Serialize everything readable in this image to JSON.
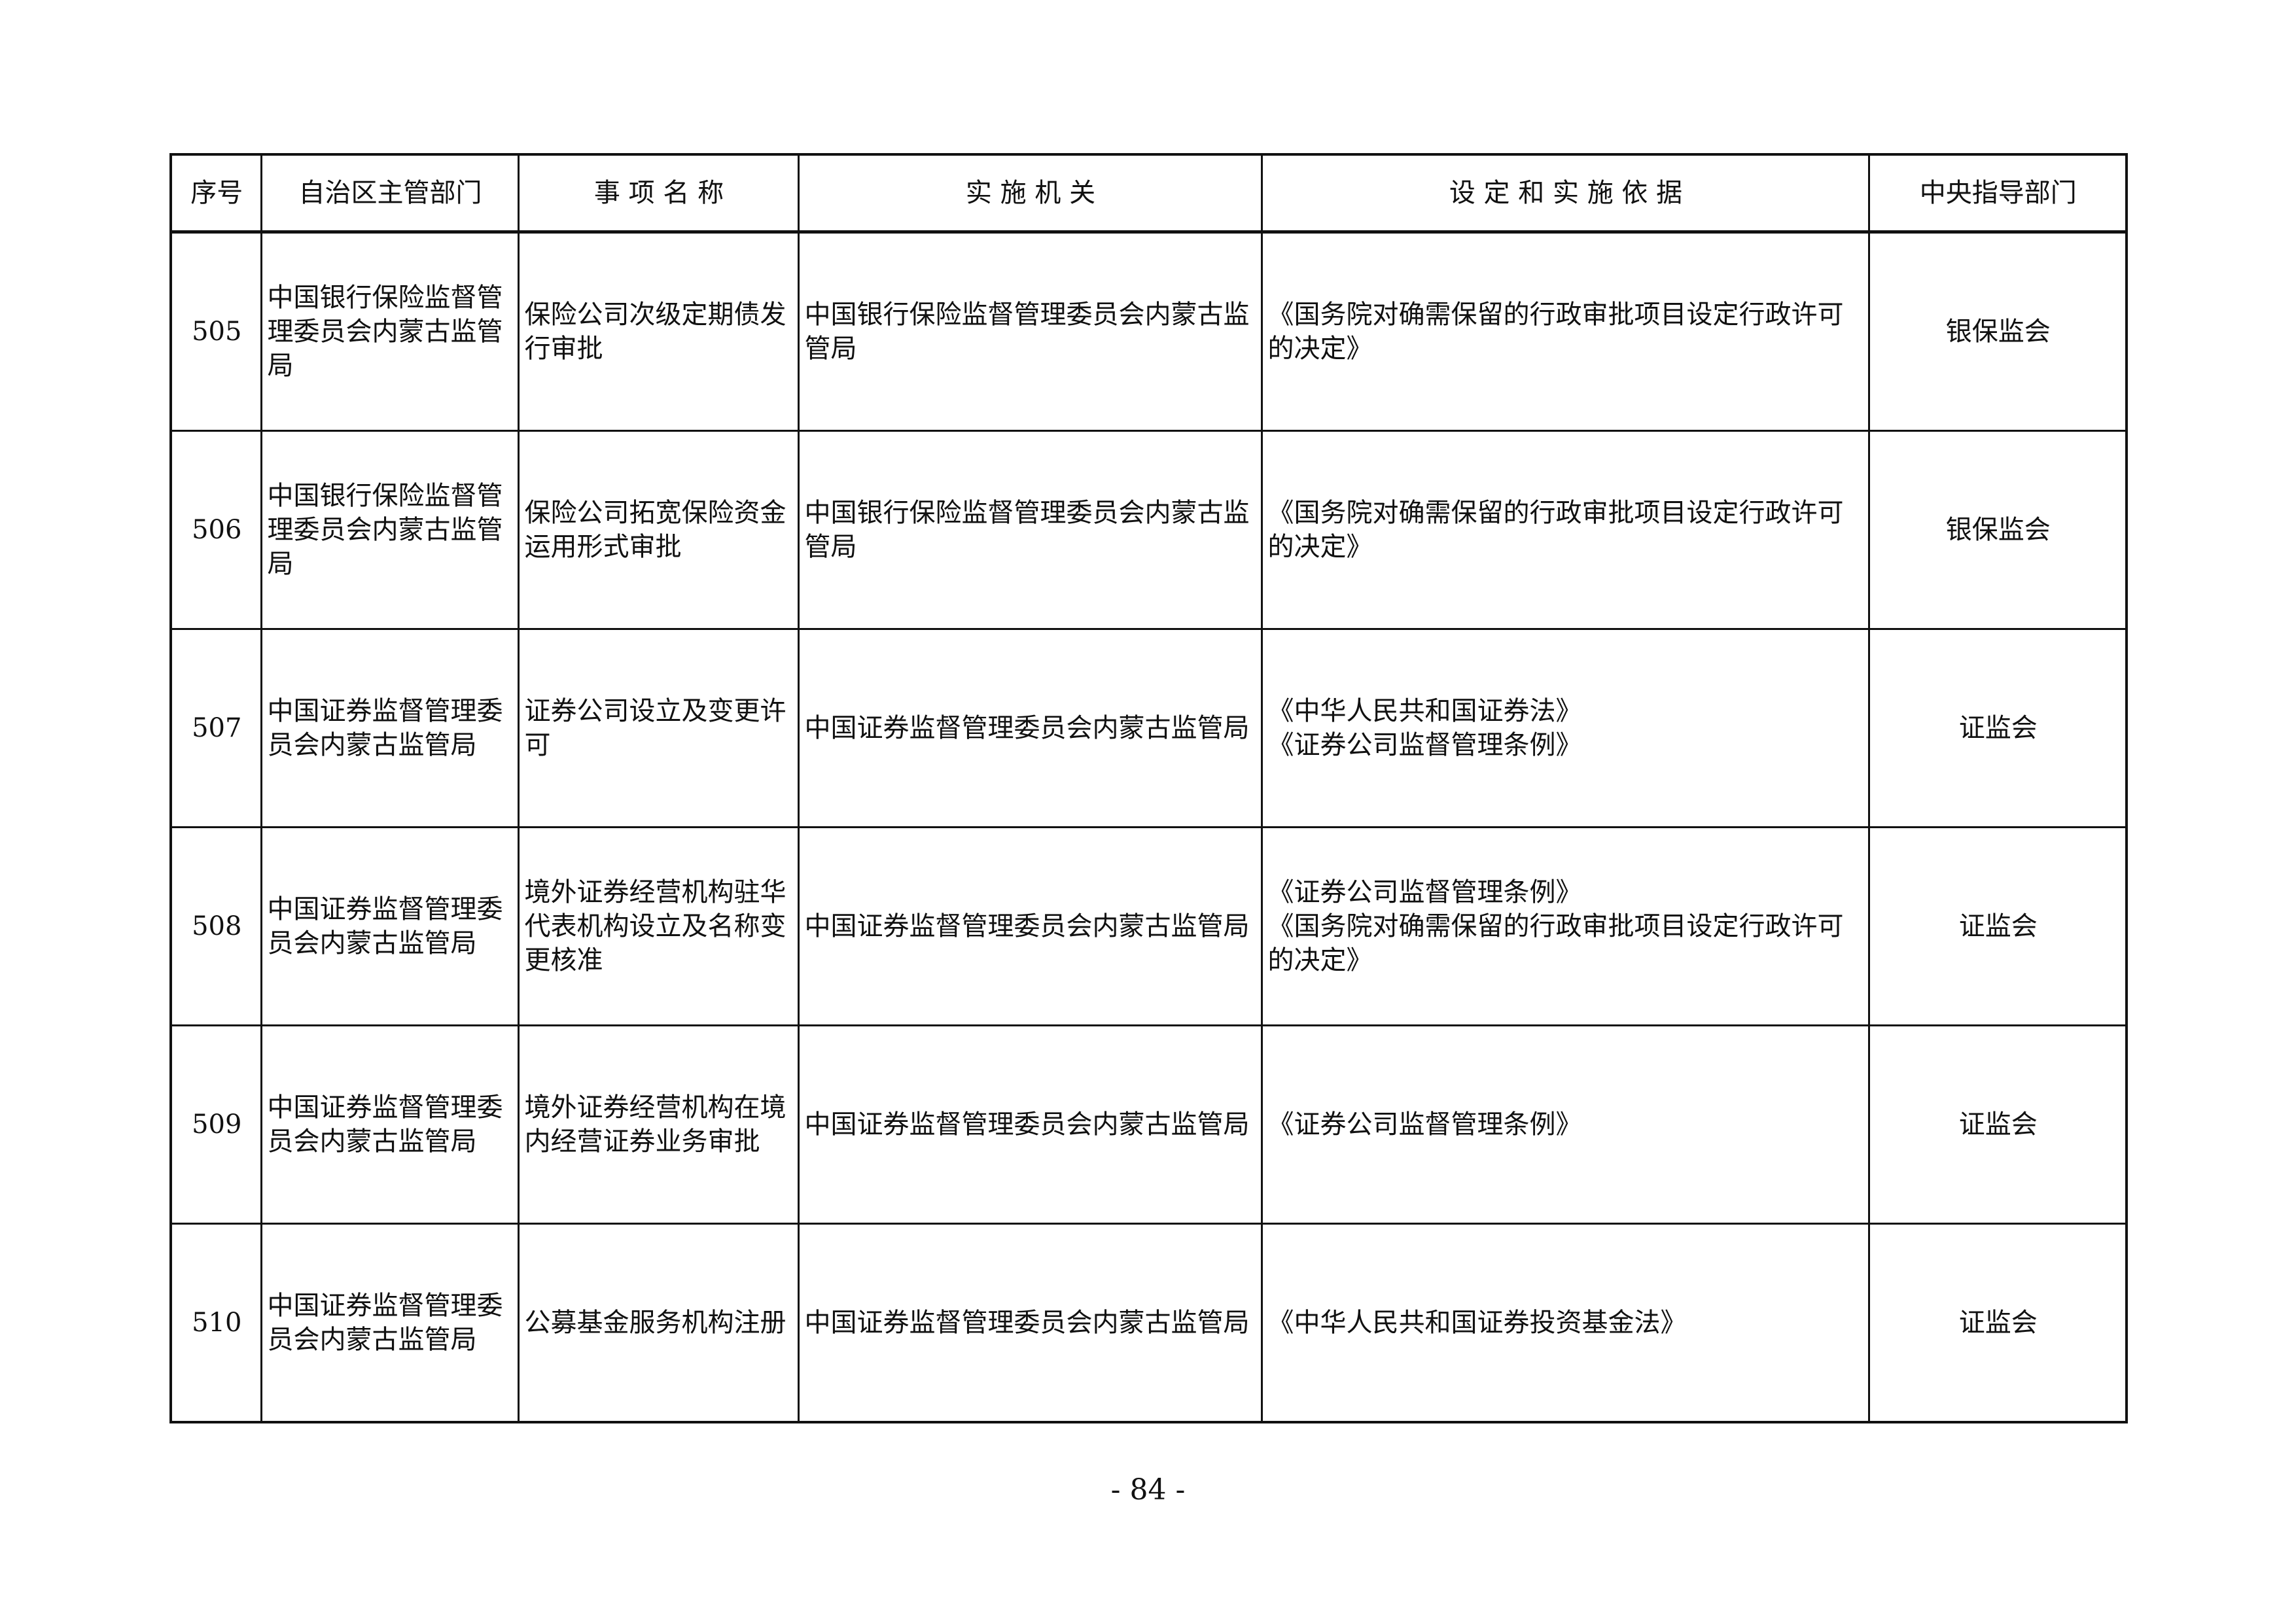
{
  "table": {
    "headers": [
      "序号",
      "自治区主管部门",
      "事 项 名 称",
      "实 施 机 关",
      "设 定 和 实 施 依 据",
      "中央指导部门"
    ],
    "rows": [
      {
        "no": "505",
        "dept": "中国银行保险监督管理委员会内蒙古监管局",
        "item": "保险公司次级定期债发行审批",
        "agency": "中国银行保险监督管理委员会内蒙古监管局",
        "basis": [
          "《国务院对确需保留的行政审批项目设定行政许可的决定》"
        ],
        "central": "银保监会"
      },
      {
        "no": "506",
        "dept": "中国银行保险监督管理委员会内蒙古监管局",
        "item": "保险公司拓宽保险资金运用形式审批",
        "agency": "中国银行保险监督管理委员会内蒙古监管局",
        "basis": [
          "《国务院对确需保留的行政审批项目设定行政许可的决定》"
        ],
        "central": "银保监会"
      },
      {
        "no": "507",
        "dept": "中国证券监督管理委员会内蒙古监管局",
        "item": "证券公司设立及变更许可",
        "agency": "中国证券监督管理委员会内蒙古监管局",
        "basis": [
          "《中华人民共和国证券法》",
          "《证券公司监督管理条例》"
        ],
        "central": "证监会"
      },
      {
        "no": "508",
        "dept": "中国证券监督管理委员会内蒙古监管局",
        "item": "境外证券经营机构驻华代表机构设立及名称变更核准",
        "agency": "中国证券监督管理委员会内蒙古监管局",
        "basis": [
          "《证券公司监督管理条例》",
          "《国务院对确需保留的行政审批项目设定行政许可的决定》"
        ],
        "central": "证监会"
      },
      {
        "no": "509",
        "dept": "中国证券监督管理委员会内蒙古监管局",
        "item": "境外证券经营机构在境内经营证券业务审批",
        "agency": "中国证券监督管理委员会内蒙古监管局",
        "basis": [
          "《证券公司监督管理条例》"
        ],
        "central": "证监会"
      },
      {
        "no": "510",
        "dept": "中国证券监督管理委员会内蒙古监管局",
        "item": "公募基金服务机构注册",
        "agency": "中国证券监督管理委员会内蒙古监管局",
        "basis": [
          "《中华人民共和国证券投资基金法》"
        ],
        "central": "证监会"
      }
    ]
  },
  "page_number": "- 84 -"
}
